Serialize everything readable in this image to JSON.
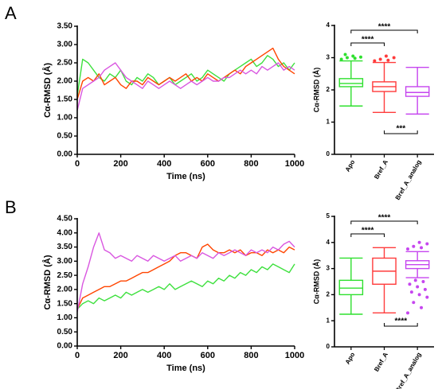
{
  "panel_labels": [
    "A",
    "B"
  ],
  "chart_data": [
    {
      "type": "line",
      "xlabel": "Time (ns)",
      "ylabel": "Cα-RMSD (Å)",
      "xlim": [
        0,
        1000
      ],
      "xticks": [
        0,
        200,
        400,
        600,
        800,
        1000
      ],
      "ylim": [
        0,
        3.5
      ],
      "yticks": [
        {
          "value": 0,
          "label": "0.00"
        },
        {
          "value": 0.5,
          "label": "0.50"
        },
        {
          "value": 1,
          "label": "1.00"
        },
        {
          "value": 1.5,
          "label": "1.50"
        },
        {
          "value": 2,
          "label": "2.00"
        },
        {
          "value": 2.5,
          "label": "2.50"
        },
        {
          "value": 3,
          "label": "3.00"
        },
        {
          "value": 3.5,
          "label": "3.50"
        }
      ],
      "x": [
        0,
        25,
        50,
        75,
        100,
        125,
        150,
        175,
        200,
        225,
        250,
        275,
        300,
        325,
        350,
        375,
        400,
        425,
        450,
        475,
        500,
        525,
        550,
        575,
        600,
        625,
        650,
        675,
        700,
        725,
        750,
        775,
        800,
        825,
        850,
        875,
        900,
        925,
        950,
        975,
        1000
      ],
      "series": [
        {
          "color": "#3ee03e",
          "values": [
            1.6,
            2.6,
            2.5,
            2.3,
            2.1,
            2.0,
            2.2,
            2.1,
            2.3,
            2.0,
            1.9,
            2.1,
            2.0,
            2.2,
            2.1,
            1.9,
            2.0,
            2.1,
            1.9,
            2.0,
            2.1,
            2.2,
            2.0,
            2.1,
            2.3,
            2.2,
            2.1,
            2.0,
            2.2,
            2.3,
            2.4,
            2.5,
            2.6,
            2.4,
            2.5,
            2.7,
            2.6,
            2.4,
            2.5,
            2.3,
            2.5
          ]
        },
        {
          "color": "#ff4500",
          "values": [
            1.5,
            2.0,
            2.1,
            2.0,
            2.2,
            1.9,
            2.0,
            2.1,
            1.9,
            1.8,
            2.0,
            2.0,
            1.9,
            2.1,
            2.0,
            1.9,
            2.0,
            2.1,
            2.0,
            2.1,
            2.2,
            2.0,
            2.1,
            2.0,
            2.2,
            2.1,
            2.0,
            2.1,
            2.2,
            2.3,
            2.2,
            2.4,
            2.5,
            2.6,
            2.7,
            2.8,
            2.9,
            2.6,
            2.4,
            2.3,
            2.2
          ]
        },
        {
          "color": "#d957e0",
          "values": [
            1.2,
            1.8,
            1.9,
            2.0,
            2.1,
            2.3,
            2.4,
            2.5,
            2.3,
            2.1,
            2.0,
            1.9,
            1.8,
            2.0,
            1.9,
            1.8,
            1.9,
            2.0,
            1.9,
            1.8,
            1.9,
            2.0,
            1.9,
            2.0,
            2.1,
            2.0,
            2.0,
            2.1,
            2.1,
            2.2,
            2.3,
            2.2,
            2.3,
            2.2,
            2.4,
            2.3,
            2.4,
            2.5,
            2.3,
            2.4,
            2.3
          ]
        }
      ]
    },
    {
      "type": "box",
      "ylabel": "Cα-RMSD (Å)",
      "ylim": [
        0,
        4
      ],
      "yticks": [
        0,
        1,
        2,
        3,
        4
      ],
      "categories": [
        "Apo",
        "Bref_A",
        "Bref_A_analog"
      ],
      "boxes": [
        {
          "color": "#2fe02f",
          "min": 1.5,
          "q1": 2.1,
          "median": 2.2,
          "q3": 2.35,
          "max": 2.9,
          "outliers": [
            2.95,
            2.98,
            3.0,
            3.02,
            3.05,
            3.1
          ]
        },
        {
          "color": "#ff3b3b",
          "min": 1.3,
          "q1": 1.95,
          "median": 2.1,
          "q3": 2.25,
          "max": 2.85,
          "outliers": [
            2.9,
            2.92,
            2.95,
            3.0,
            3.05
          ]
        },
        {
          "color": "#c646ef",
          "min": 1.25,
          "q1": 1.8,
          "median": 1.92,
          "q3": 2.1,
          "max": 2.7,
          "outliers": []
        }
      ],
      "annotations": [
        {
          "groups": [
            "Apo",
            "Bref_A_analog"
          ],
          "side": "above",
          "text": "****"
        },
        {
          "groups": [
            "Apo",
            "Bref_A"
          ],
          "side": "above",
          "text": "****"
        },
        {
          "groups": [
            "Bref_A",
            "Bref_A_analog"
          ],
          "side": "below",
          "text": "***"
        }
      ]
    },
    {
      "type": "line",
      "xlabel": "Time (ns)",
      "ylabel": "Cα-RMSD (Å)",
      "xlim": [
        0,
        1000
      ],
      "xticks": [
        0,
        200,
        400,
        600,
        800,
        1000
      ],
      "ylim": [
        0,
        4.5
      ],
      "yticks": [
        {
          "value": 0,
          "label": "0.00"
        },
        {
          "value": 0.5,
          "label": "0.50"
        },
        {
          "value": 1,
          "label": "1.00"
        },
        {
          "value": 1.5,
          "label": "1.50"
        },
        {
          "value": 2,
          "label": "2.00"
        },
        {
          "value": 2.5,
          "label": "2.50"
        },
        {
          "value": 3,
          "label": "3.00"
        },
        {
          "value": 3.5,
          "label": "3.50"
        },
        {
          "value": 4,
          "label": "4.00"
        },
        {
          "value": 4.5,
          "label": "4.50"
        }
      ],
      "x": [
        0,
        25,
        50,
        75,
        100,
        125,
        150,
        175,
        200,
        225,
        250,
        275,
        300,
        325,
        350,
        375,
        400,
        425,
        450,
        475,
        500,
        525,
        550,
        575,
        600,
        625,
        650,
        675,
        700,
        725,
        750,
        775,
        800,
        825,
        850,
        875,
        900,
        925,
        950,
        975,
        1000
      ],
      "series": [
        {
          "color": "#3ee03e",
          "values": [
            1.3,
            1.5,
            1.6,
            1.5,
            1.7,
            1.6,
            1.7,
            1.8,
            1.7,
            1.9,
            1.8,
            1.9,
            2.0,
            1.9,
            2.0,
            2.1,
            2.0,
            2.2,
            2.0,
            2.1,
            2.2,
            2.3,
            2.2,
            2.1,
            2.3,
            2.2,
            2.4,
            2.3,
            2.5,
            2.4,
            2.6,
            2.5,
            2.7,
            2.6,
            2.8,
            2.7,
            2.9,
            2.8,
            2.7,
            2.6,
            2.9
          ]
        },
        {
          "color": "#ff4500",
          "values": [
            1.3,
            1.7,
            1.8,
            1.9,
            2.0,
            2.1,
            2.1,
            2.2,
            2.3,
            2.3,
            2.4,
            2.5,
            2.6,
            2.6,
            2.7,
            2.8,
            2.9,
            3.0,
            3.2,
            3.3,
            3.3,
            3.2,
            3.1,
            3.5,
            3.6,
            3.4,
            3.3,
            3.3,
            3.4,
            3.3,
            3.4,
            3.2,
            3.3,
            3.3,
            3.2,
            3.4,
            3.3,
            3.4,
            3.3,
            3.5,
            3.4
          ]
        },
        {
          "color": "#d957e0",
          "values": [
            1.2,
            2.2,
            2.8,
            3.5,
            4.0,
            3.4,
            3.3,
            3.1,
            3.2,
            3.1,
            3.0,
            3.2,
            3.1,
            3.0,
            3.2,
            3.1,
            3.0,
            3.1,
            3.2,
            3.0,
            3.1,
            3.2,
            3.1,
            3.3,
            3.2,
            3.1,
            3.3,
            3.2,
            3.3,
            3.4,
            3.3,
            3.2,
            3.4,
            3.3,
            3.4,
            3.3,
            3.5,
            3.4,
            3.6,
            3.7,
            3.5
          ]
        }
      ]
    },
    {
      "type": "box",
      "ylabel": "Cα-RMSD (Å)",
      "ylim": [
        0,
        5
      ],
      "yticks": [
        0,
        1,
        2,
        3,
        4,
        5
      ],
      "categories": [
        "Apo",
        "Bref_A",
        "Bref_A_analog"
      ],
      "boxes": [
        {
          "color": "#2fe02f",
          "min": 1.25,
          "q1": 2.0,
          "median": 2.25,
          "q3": 2.55,
          "max": 3.4,
          "outliers": []
        },
        {
          "color": "#ff3b3b",
          "min": 1.3,
          "q1": 2.4,
          "median": 2.9,
          "q3": 3.4,
          "max": 3.8,
          "outliers": []
        },
        {
          "color": "#c646ef",
          "min": 2.65,
          "q1": 3.0,
          "median": 3.15,
          "q3": 3.3,
          "max": 3.65,
          "outliers": [
            1.3,
            1.5,
            1.7,
            1.9,
            2.0,
            2.1,
            2.2,
            2.3,
            2.4,
            2.5,
            2.55,
            3.75,
            3.8,
            3.85,
            3.95,
            4.0
          ]
        }
      ],
      "annotations": [
        {
          "groups": [
            "Apo",
            "Bref_A_analog"
          ],
          "side": "above",
          "text": "****"
        },
        {
          "groups": [
            "Apo",
            "Bref_A"
          ],
          "side": "above",
          "text": "****"
        },
        {
          "groups": [
            "Bref_A",
            "Bref_A_analog"
          ],
          "side": "below",
          "text": "****"
        }
      ]
    }
  ]
}
